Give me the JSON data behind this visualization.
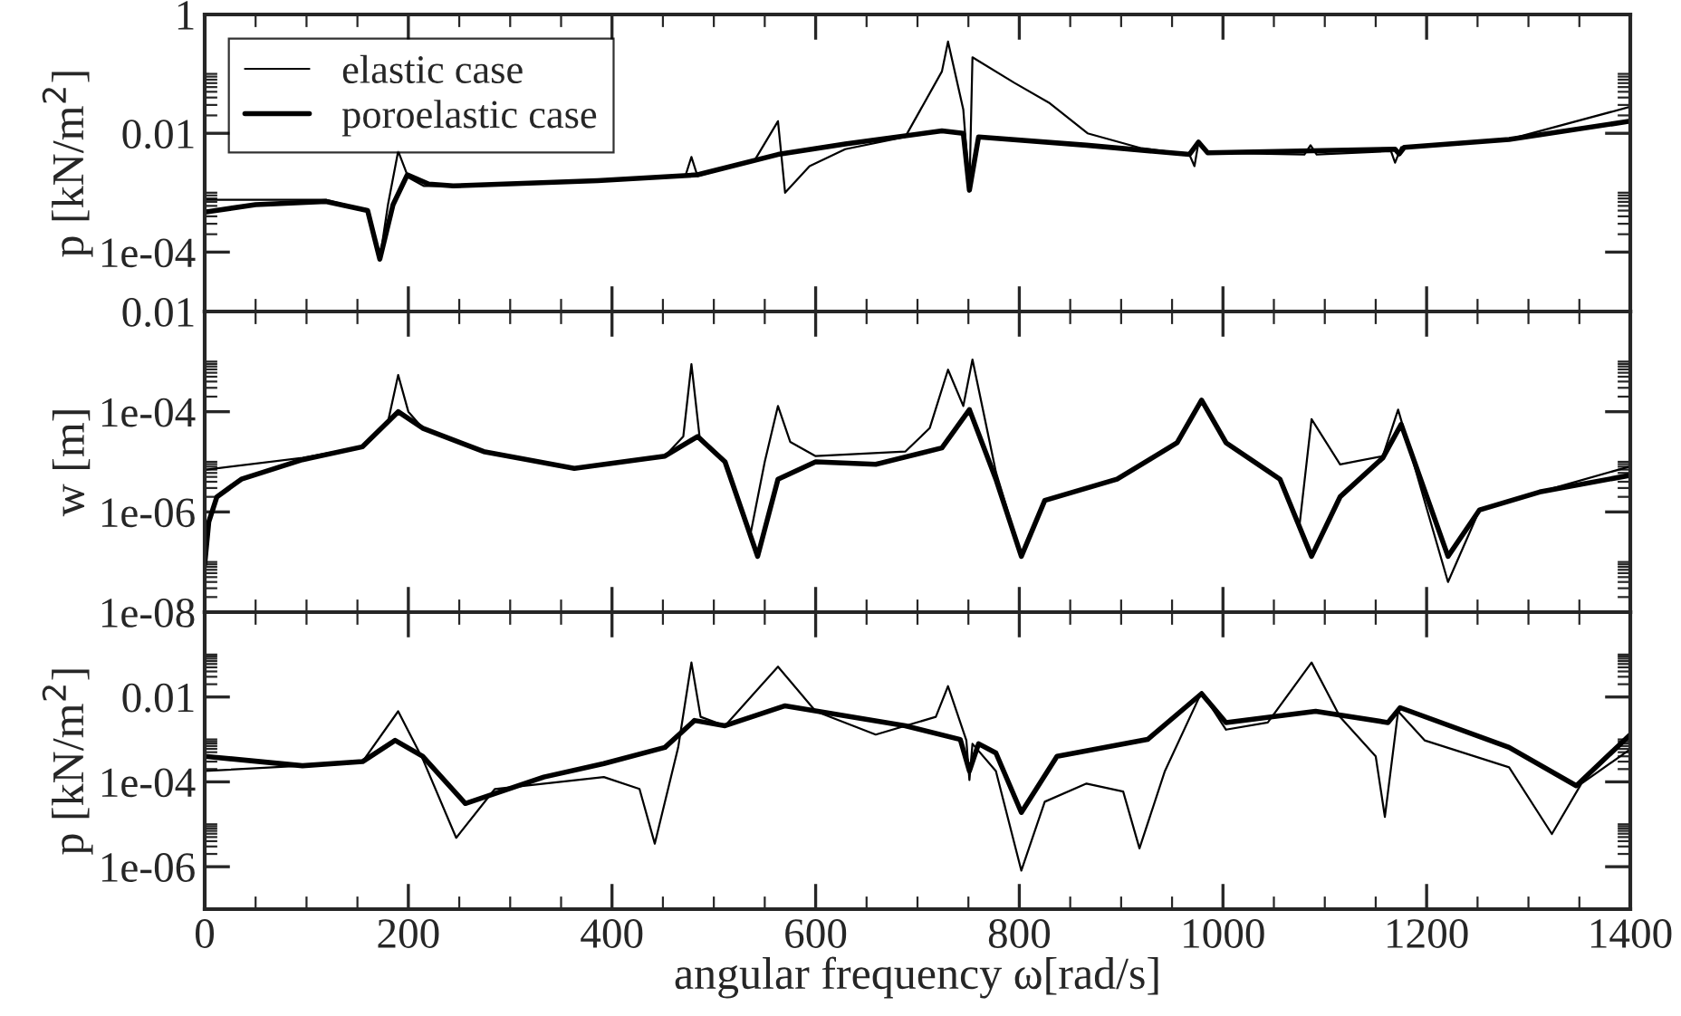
{
  "chart_data": [
    {
      "type": "line",
      "ylabel": "p [kN/m$^{2}$]",
      "log": "y",
      "grid": false,
      "legend": "top left",
      "tick_labels": "y",
      "xlim": [
        0,
        1400
      ],
      "xticks": [
        0,
        200,
        400,
        600,
        800,
        1000,
        1200,
        1400
      ],
      "ylim": [
        1e-05,
        1
      ],
      "yticks": [
        1,
        0.01,
        {
          "value": 0.0001,
          "label": "1e-04"
        }
      ],
      "series": [
        {
          "name": "elastic case",
          "color": "#000000",
          "x": [
            0,
            119,
            160,
            172,
            180,
            190,
            200,
            215,
            244,
            386,
            452,
            472,
            478,
            484,
            540,
            563,
            570,
            594,
            629,
            688,
            724,
            730,
            745,
            751,
            754,
            795,
            830,
            867,
            920,
            967,
            972,
            976,
            985,
            1080,
            1086,
            1092,
            1165,
            1169,
            1175,
            1281,
            1400
          ],
          "values": [
            0.00076,
            0.00076,
            0.0005,
            7.6e-05,
            0.00063,
            0.005,
            0.0018,
            0.0013,
            0.0013,
            0.0016,
            0.0019,
            0.0019,
            0.004,
            0.0019,
            0.0035,
            0.016,
            0.001,
            0.0028,
            0.0054,
            0.0087,
            0.11,
            0.35,
            0.025,
            0.0011,
            0.19,
            0.071,
            0.032,
            0.01,
            0.0056,
            0.0044,
            0.0028,
            0.0071,
            0.0047,
            0.0044,
            0.0063,
            0.0044,
            0.005,
            0.0032,
            0.0058,
            0.0079,
            0.028
          ]
        },
        {
          "name": "poroelastic case",
          "color": "#000000",
          "x": [
            0,
            50,
            119,
            160,
            172,
            185,
            199,
            220,
            244,
            386,
            484,
            563,
            629,
            724,
            745,
            751,
            760,
            866,
            967,
            976,
            985,
            1169,
            1173,
            1178,
            1281,
            1400
          ],
          "values": [
            0.00047,
            0.00063,
            0.00071,
            0.0005,
            7.6e-05,
            0.00063,
            0.002,
            0.0014,
            0.0013,
            0.0016,
            0.002,
            0.0044,
            0.0066,
            0.011,
            0.01,
            0.0011,
            0.0087,
            0.0063,
            0.0044,
            0.0071,
            0.0047,
            0.0054,
            0.0045,
            0.0058,
            0.0079,
            0.016
          ]
        }
      ]
    },
    {
      "type": "line",
      "ylabel": "w [m]",
      "log": "y",
      "grid": false,
      "tick_labels": "y",
      "xlim": [
        0,
        1400
      ],
      "xticks": [
        0,
        200,
        400,
        600,
        800,
        1000,
        1200,
        1400
      ],
      "ylim": [
        1e-08,
        0.01
      ],
      "yticks": [
        0.01,
        {
          "value": 0.0001,
          "label": "1e-04"
        },
        {
          "value": 1e-06,
          "label": "1e-06"
        },
        {
          "value": 1e-08,
          "label": "1e-08"
        }
      ],
      "series": [
        {
          "color": "#000000",
          "x": [
            0,
            96,
            155,
            180,
            190,
            200,
            214,
            274,
            363,
            452,
            470,
            478,
            486,
            511,
            536,
            550,
            563,
            575,
            600,
            688,
            712,
            730,
            745,
            754,
            777,
            802,
            825,
            896,
            955,
            979,
            1003,
            1056,
            1075,
            1087,
            1115,
            1157,
            1172,
            1221,
            1252,
            1311,
            1400
          ],
          "values": [
            6.9e-06,
            1.2e-05,
            2e-05,
            6.3e-05,
            0.00054,
            0.0001,
            4.7e-05,
            1.6e-05,
            7.4e-06,
            1.3e-05,
            3.2e-05,
            0.00089,
            3.2e-05,
            1e-05,
            3.6e-07,
            1e-05,
            0.00013,
            2.5e-05,
            1.3e-05,
            1.6e-05,
            4.7e-05,
            0.00069,
            0.00013,
            0.0011,
            6.3e-06,
            1.3e-07,
            1.7e-06,
            4.5e-06,
            2.4e-05,
            0.00017,
            2.4e-05,
            4.5e-06,
            5.1e-07,
            7.1e-05,
            8.9e-06,
            1.3e-05,
            0.00011,
            4e-08,
            1.1e-06,
            2.5e-06,
            8.1e-06
          ]
        },
        {
          "color": "#000000",
          "x": [
            0,
            4,
            12,
            36,
            96,
            155,
            190,
            214,
            274,
            363,
            452,
            484,
            511,
            543,
            563,
            600,
            659,
            724,
            751,
            777,
            802,
            825,
            896,
            955,
            979,
            1003,
            1056,
            1087,
            1115,
            1157,
            1175,
            1221,
            1252,
            1311,
            1400
          ],
          "values": [
            8.9e-08,
            6.3e-07,
            2e-06,
            4.5e-06,
            1.1e-05,
            2e-05,
            0.0001,
            4.7e-05,
            1.6e-05,
            7.4e-06,
            1.3e-05,
            3.2e-05,
            1e-05,
            1.3e-07,
            4.5e-06,
            1e-05,
            8.9e-06,
            1.9e-05,
            0.00011,
            4.5e-06,
            1.3e-07,
            1.7e-06,
            4.5e-06,
            2.4e-05,
            0.00017,
            2.4e-05,
            4.5e-06,
            1.3e-07,
            2e-06,
            1.2e-05,
            5.6e-05,
            1.3e-07,
            1.1e-06,
            2.5e-06,
            5.4e-06
          ]
        }
      ]
    },
    {
      "type": "line",
      "ylabel": "p [kN/m$^{2}$]",
      "xlabel": "angular frequency ω[rad/s]",
      "log": "y",
      "grid": false,
      "xlim": [
        0,
        1400
      ],
      "xticks": [
        0,
        200,
        400,
        600,
        800,
        1000,
        1200,
        1400
      ],
      "ylim": [
        1e-07,
        1
      ],
      "yticks": [
        0.01,
        {
          "value": 0.0001,
          "label": "1e-04"
        },
        {
          "value": 1e-06,
          "label": "1e-06"
        }
      ],
      "series": [
        {
          "color": "#000000",
          "x": [
            0,
            96,
            155,
            190,
            214,
            247,
            285,
            392,
            427,
            442,
            465,
            478,
            487,
            511,
            563,
            600,
            659,
            718,
            730,
            748,
            751,
            754,
            777,
            802,
            825,
            866,
            902,
            918,
            943,
            979,
            1003,
            1044,
            1087,
            1115,
            1150,
            1159,
            1172,
            1198,
            1281,
            1323,
            1352,
            1400
          ],
          "values": [
            0.00018,
            0.00024,
            0.0003,
            0.0046,
            0.00035,
            4.8e-06,
            6.8e-05,
            0.00013,
            6.8e-05,
            3.5e-06,
            0.00065,
            0.065,
            0.0034,
            0.0021,
            0.052,
            0.0046,
            0.0013,
            0.0034,
            0.018,
            0.00095,
            0.00011,
            0.00079,
            0.00018,
            8.1e-07,
            3.4e-05,
            9.1e-05,
            5.9e-05,
            2.7e-06,
            0.00018,
            0.013,
            0.0017,
            0.0025,
            0.065,
            0.0034,
            0.0004,
            1.5e-05,
            0.0046,
            0.00095,
            0.00022,
            5.9e-06,
            9.1e-05,
            0.00059
          ]
        },
        {
          "color": "#000000",
          "x": [
            0,
            96,
            155,
            187,
            214,
            256,
            333,
            392,
            452,
            481,
            511,
            570,
            688,
            742,
            751,
            760,
            777,
            802,
            837,
            926,
            979,
            1003,
            1091,
            1162,
            1174,
            1281,
            1347,
            1400
          ],
          "values": [
            0.0004,
            0.00024,
            0.0003,
            0.00095,
            0.0004,
            3.1e-05,
            0.00013,
            0.00027,
            0.00065,
            0.0028,
            0.0021,
            0.0062,
            0.0021,
            0.001,
            0.00018,
            0.00079,
            0.00048,
            1.9e-05,
            0.0004,
            0.001,
            0.012,
            0.0025,
            0.0046,
            0.0025,
            0.0056,
            0.00065,
            8.1e-05,
            0.0013
          ]
        }
      ]
    }
  ]
}
